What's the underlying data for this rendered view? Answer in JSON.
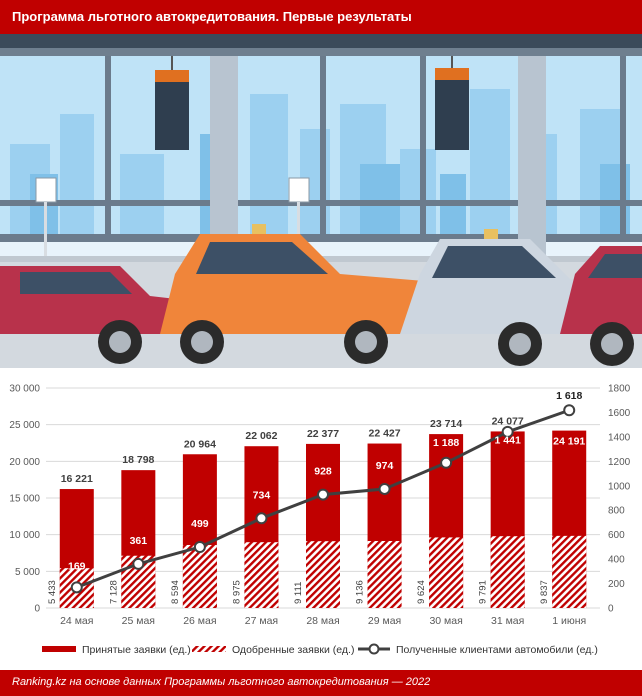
{
  "header": {
    "title": "Программа льготного автокредитования. Первые результаты"
  },
  "footer": {
    "source": "Ranking.kz на основе данных Программы льготного автокредитования — 2022"
  },
  "colors": {
    "brand": "#c00000",
    "line": "#404040",
    "grid": "#d9d9d9",
    "axis_text": "#595959"
  },
  "illustration": {
    "description_icons": [
      "car-dealership-illustration"
    ],
    "cars": [
      "red",
      "orange",
      "silver",
      "red"
    ]
  },
  "chart_data": {
    "type": "bar",
    "categories": [
      "24 мая",
      "25 мая",
      "26 мая",
      "27 мая",
      "28 мая",
      "29 мая",
      "30 мая",
      "31 мая",
      "1 июня"
    ],
    "series": [
      {
        "name": "Принятые заявки (ед.)",
        "type": "bar",
        "axis": "left",
        "values": [
          16221,
          18798,
          20964,
          22062,
          22377,
          22427,
          23714,
          24077,
          24191
        ],
        "labels": [
          "16 221",
          "18 798",
          "20 964",
          "22 062",
          "22 377",
          "22 427",
          "23 714",
          "24 077",
          "24 191"
        ]
      },
      {
        "name": "Одобренные заявки (ед.)",
        "type": "bar-hatched",
        "axis": "left",
        "values": [
          5433,
          7128,
          8594,
          8975,
          9111,
          9136,
          9624,
          9791,
          9837
        ],
        "labels": [
          "5 433",
          "7 128",
          "8 594",
          "8 975",
          "9 111",
          "9 136",
          "9 624",
          "9 791",
          "9 837"
        ]
      },
      {
        "name": "Полученные клиентами автомобили (ед.)",
        "type": "line",
        "axis": "right",
        "values": [
          169,
          361,
          499,
          734,
          928,
          974,
          1188,
          1441,
          1618
        ],
        "labels": [
          "169",
          "361",
          "499",
          "734",
          "928",
          "974",
          "1 188",
          "1 441",
          "1 618"
        ]
      }
    ],
    "ylim_left": [
      0,
      30000
    ],
    "yticks_left": [
      "0",
      "5 000",
      "10 000",
      "15 000",
      "20 000",
      "25 000",
      "30 000"
    ],
    "ylim_right": [
      0,
      1800
    ],
    "yticks_right": [
      "0",
      "200",
      "400",
      "600",
      "800",
      "1000",
      "1200",
      "1400",
      "1600",
      "1800"
    ],
    "grid": true,
    "legend": "bottom"
  }
}
